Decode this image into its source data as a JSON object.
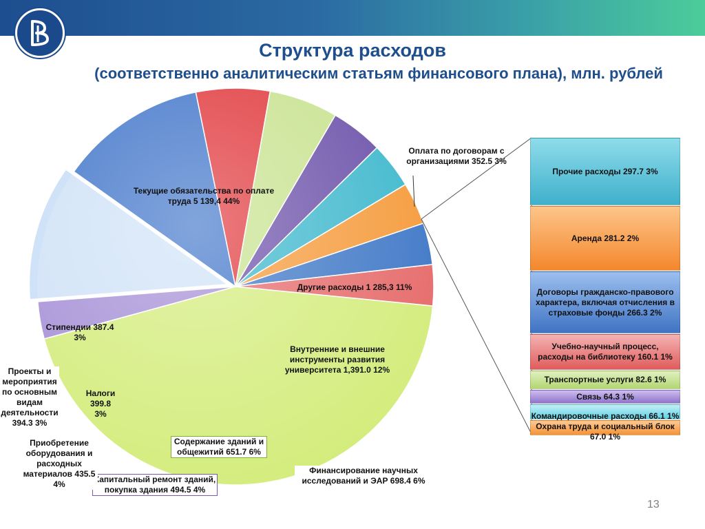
{
  "header": {
    "title": "Структура расходов",
    "subtitle": "(соответственно аналитическим статьям финансового плана), млн. рублей"
  },
  "colors": {
    "topbar": "#2b6aa3",
    "title": "#1f4e8c"
  },
  "page_number": "13",
  "chart_data": [
    {
      "type": "pie",
      "title": "Структура расходов",
      "slices": [
        {
          "label": "Текущие обязательства по оплате труда  5 139,4    44%",
          "value": 5139.4,
          "percent": 44,
          "color": "#d4ec7c"
        },
        {
          "label": "Оплата по договорам с организациями  352.5    3%",
          "value": 352.5,
          "percent": 3,
          "color": "#a58fd6"
        },
        {
          "label": "Другие расходы  1 285,3    11%",
          "value": 1285.3,
          "percent": 11,
          "color": "#cfe2f7"
        },
        {
          "label": "Внутренние и внешние инструменты развития университета  1,391.0    12%",
          "value": 1391.0,
          "percent": 12,
          "color": "#3f74c9"
        },
        {
          "label": "Финансирование научных исследований и ЭАР  698.4    6%",
          "value": 698.4,
          "percent": 6,
          "color": "#e0363a"
        },
        {
          "label": "Содержание зданий и общежитий  651.7    6%",
          "value": 651.7,
          "percent": 6,
          "color": "#c7e28e"
        },
        {
          "label": "Капитальный ремонт зданий, покупка здания  494.5    4%",
          "value": 494.5,
          "percent": 4,
          "color": "#6a4fa8"
        },
        {
          "label": "Приобретение оборудования и расходных материалов  435.5    4%",
          "value": 435.5,
          "percent": 4,
          "color": "#3cb7cc"
        },
        {
          "label": "Налоги 399.8 3%",
          "value": 399.8,
          "percent": 3,
          "color": "#f59a3a"
        },
        {
          "label": "Проекты и мероприятия по основным видам деятельности 394.3    3%",
          "value": 394.3,
          "percent": 3,
          "color": "#3e77c6"
        },
        {
          "label": "Стипендии  387.4 3%",
          "value": 387.4,
          "percent": 3,
          "color": "#e66a6a"
        }
      ]
    },
    {
      "type": "bar",
      "stacked": true,
      "breakdown_of": "Другие расходы  1 285,3    11%",
      "segments": [
        {
          "label": "Прочие расходы  297.7    3%",
          "value": 297.7,
          "percent": 3,
          "color": "#4fb6cf"
        },
        {
          "label": "Аренда  281.2    2%",
          "value": 281.2,
          "percent": 2,
          "color": "#f7923a"
        },
        {
          "label": "Договоры гражданско-правового характера, включая отчисления в страховые фонды 266.3    2%",
          "value": 266.3,
          "percent": 2,
          "color": "#4c80cc"
        },
        {
          "label": "Учебно-научный процесс, расходы на библиотеку  160.1    1%",
          "value": 160.1,
          "percent": 1,
          "color": "#e56f6f"
        },
        {
          "label": "Транспортные услуги  82.6    1%",
          "value": 82.6,
          "percent": 1,
          "color": "#bada7f"
        },
        {
          "label": "Связь  64.3    1%",
          "value": 64.3,
          "percent": 1,
          "color": "#9d86d0"
        },
        {
          "label": "Командировочные расходы 66.1    1%",
          "value": 66.1,
          "percent": 1,
          "color": "#6fd3e6"
        },
        {
          "label": "Охрана труда и социальный блок  67.0    1%",
          "value": 67.0,
          "percent": 1,
          "color": "#f59a45"
        }
      ]
    }
  ]
}
